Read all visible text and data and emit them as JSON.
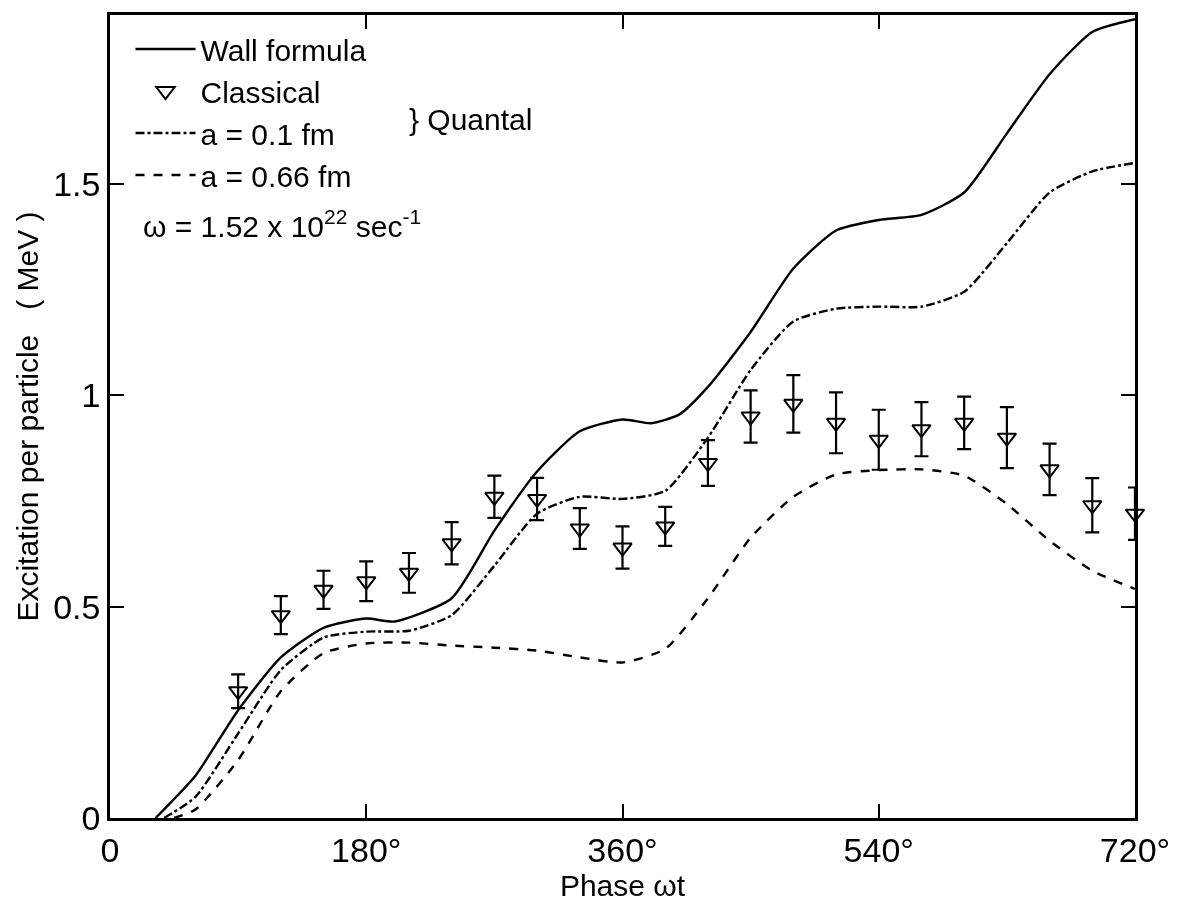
{
  "chart_data": {
    "type": "line",
    "xlabel": "Phase ωt",
    "ylabel": "Excitation per particle   ( MeV )",
    "xlim": [
      0,
      720
    ],
    "xticks": [
      {
        "value": 0,
        "label": "0"
      },
      {
        "value": 180,
        "label": "180°"
      },
      {
        "value": 360,
        "label": "360°"
      },
      {
        "value": 540,
        "label": "540°"
      },
      {
        "value": 720,
        "label": "720°"
      }
    ],
    "ylim": [
      0,
      1.9
    ],
    "yticks": [
      {
        "value": 0,
        "label": "0"
      },
      {
        "value": 0.5,
        "label": "0.5"
      },
      {
        "value": 1,
        "label": "1"
      },
      {
        "value": 1.5,
        "label": "1.5"
      }
    ],
    "grid": false,
    "legend": "top left",
    "annotations": [
      "} Quantal",
      "ω = 1.52 x 10$^{22}$ sec$^{-1}$"
    ],
    "series": [
      {
        "name": "Wall formula",
        "color": "#000000",
        "line_style": "solid",
        "marker": "none",
        "x": [
          32,
          60,
          90,
          120,
          150,
          180,
          200,
          240,
          270,
          300,
          330,
          360,
          380,
          400,
          420,
          450,
          480,
          510,
          540,
          570,
          600,
          630,
          660,
          690,
          720
        ],
        "values": [
          0,
          0.1,
          0.255,
          0.38,
          0.45,
          0.472,
          0.465,
          0.52,
          0.68,
          0.82,
          0.915,
          0.943,
          0.934,
          0.955,
          1.02,
          1.15,
          1.3,
          1.39,
          1.415,
          1.427,
          1.48,
          1.62,
          1.76,
          1.86,
          1.89
        ]
      },
      {
        "name": "Classical",
        "type": "scatter",
        "color": "#000000",
        "marker": "triangle",
        "x": [
          90,
          120,
          150,
          180,
          210,
          240,
          270,
          300,
          330,
          360,
          390,
          420,
          450,
          480,
          510,
          540,
          570,
          600,
          630,
          660,
          690,
          720
        ],
        "values": [
          0.3,
          0.48,
          0.54,
          0.56,
          0.58,
          0.65,
          0.76,
          0.755,
          0.685,
          0.64,
          0.69,
          0.84,
          0.95,
          0.98,
          0.935,
          0.895,
          0.92,
          0.935,
          0.9,
          0.825,
          0.74,
          0.72
        ],
        "errors": [
          0.04,
          0.045,
          0.045,
          0.047,
          0.047,
          0.05,
          0.05,
          0.05,
          0.048,
          0.05,
          0.046,
          0.054,
          0.062,
          0.068,
          0.072,
          0.071,
          0.064,
          0.062,
          0.072,
          0.061,
          0.064,
          0.062
        ]
      },
      {
        "name": "a = 0.1 fm",
        "color": "#000000",
        "line_style": "dashdot",
        "marker": "none",
        "x": [
          38,
          60,
          90,
          120,
          150,
          180,
          210,
          240,
          270,
          300,
          330,
          360,
          390,
          420,
          450,
          480,
          510,
          540,
          570,
          600,
          630,
          660,
          690,
          720
        ],
        "values": [
          0,
          0.05,
          0.2,
          0.35,
          0.427,
          0.441,
          0.443,
          0.48,
          0.597,
          0.72,
          0.76,
          0.755,
          0.774,
          0.9,
          1.06,
          1.175,
          1.205,
          1.21,
          1.21,
          1.245,
          1.36,
          1.48,
          1.53,
          1.55
        ]
      },
      {
        "name": "a = 0.66 fm",
        "color": "#000000",
        "line_style": "dashed",
        "marker": "none",
        "x": [
          45,
          60,
          90,
          120,
          150,
          180,
          210,
          240,
          270,
          300,
          330,
          360,
          390,
          420,
          450,
          480,
          510,
          540,
          570,
          600,
          630,
          660,
          690,
          720
        ],
        "values": [
          0,
          0.02,
          0.137,
          0.3,
          0.39,
          0.413,
          0.415,
          0.408,
          0.403,
          0.396,
          0.38,
          0.368,
          0.4,
          0.52,
          0.663,
          0.76,
          0.813,
          0.823,
          0.825,
          0.81,
          0.743,
          0.656,
          0.585,
          0.542
        ]
      }
    ]
  }
}
